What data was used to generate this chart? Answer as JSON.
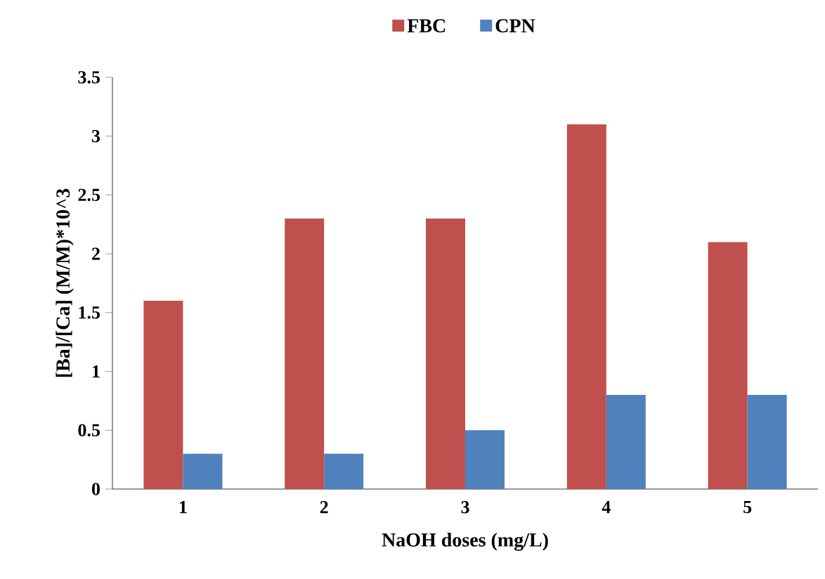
{
  "chart_data": {
    "type": "bar",
    "xlabel": "NaOH doses (mg/L)",
    "ylabel": "[Ba]/[Ca] (M/M)*10^3",
    "categories": [
      "1",
      "2",
      "3",
      "4",
      "5"
    ],
    "series": [
      {
        "name": "FBC",
        "color": "#c0504d",
        "values": [
          1.6,
          2.3,
          2.3,
          3.1,
          2.1
        ]
      },
      {
        "name": "CPN",
        "color": "#4f81bd",
        "values": [
          0.3,
          0.3,
          0.5,
          0.8,
          0.8
        ]
      }
    ],
    "ylim": [
      0,
      3.5
    ],
    "yticks": [
      0,
      0.5,
      1,
      1.5,
      2,
      2.5,
      3,
      3.5
    ],
    "grid": false,
    "legend": "top"
  }
}
